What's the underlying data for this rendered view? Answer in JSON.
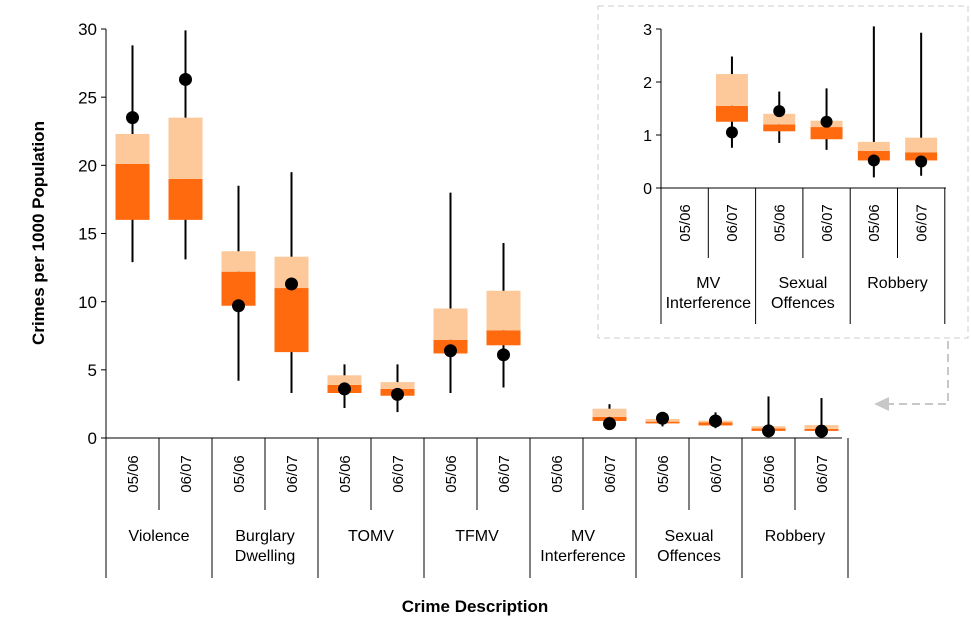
{
  "chart_data": [
    {
      "type": "box",
      "title": "",
      "xlabel": "Crime Description",
      "ylabel": "Crimes per 1000 Population",
      "ylim": [
        0,
        30
      ],
      "yticks": [
        0,
        5,
        10,
        15,
        20,
        25,
        30
      ],
      "grid": false,
      "colors": {
        "lower_box": "#ff6a0e",
        "upper_box": "#fdc99b",
        "whisker": "#000000",
        "marker": "#000000"
      },
      "categories": [
        {
          "label": "Violence",
          "periods": [
            {
              "period": "05/06",
              "min": 12.9,
              "q1": 16.0,
              "median": 20.1,
              "q3": 22.3,
              "max": 28.8,
              "value": 23.5
            },
            {
              "period": "06/07",
              "min": 13.1,
              "q1": 16.0,
              "median": 19.0,
              "q3": 23.5,
              "max": 29.9,
              "value": 26.3
            }
          ]
        },
        {
          "label": "Burglary Dwelling",
          "periods": [
            {
              "period": "05/06",
              "min": 4.2,
              "q1": 9.7,
              "median": 12.2,
              "q3": 13.7,
              "max": 18.5,
              "value": 9.7
            },
            {
              "period": "06/07",
              "min": 3.3,
              "q1": 6.3,
              "median": 11.0,
              "q3": 13.3,
              "max": 19.5,
              "value": 11.3
            }
          ]
        },
        {
          "label": "TOMV",
          "periods": [
            {
              "period": "05/06",
              "min": 2.2,
              "q1": 3.3,
              "median": 3.9,
              "q3": 4.6,
              "max": 5.4,
              "value": 3.6
            },
            {
              "period": "06/07",
              "min": 1.9,
              "q1": 3.1,
              "median": 3.6,
              "q3": 4.1,
              "max": 5.4,
              "value": 3.2
            }
          ]
        },
        {
          "label": "TFMV",
          "periods": [
            {
              "period": "05/06",
              "min": 3.3,
              "q1": 6.2,
              "median": 7.2,
              "q3": 9.5,
              "max": 18.0,
              "value": 6.4
            },
            {
              "period": "06/07",
              "min": 3.7,
              "q1": 6.8,
              "median": 7.9,
              "q3": 10.8,
              "max": 14.3,
              "value": 6.1
            }
          ]
        },
        {
          "label": "MV Interference",
          "periods": [
            {
              "period": "05/06",
              "min": null,
              "q1": null,
              "median": null,
              "q3": null,
              "max": null,
              "value": null
            },
            {
              "period": "06/07",
              "min": 0.76,
              "q1": 1.25,
              "median": 1.55,
              "q3": 2.15,
              "max": 2.48,
              "value": 1.05
            }
          ]
        },
        {
          "label": "Sexual Offences",
          "periods": [
            {
              "period": "05/06",
              "min": 0.85,
              "q1": 1.07,
              "median": 1.2,
              "q3": 1.4,
              "max": 1.82,
              "value": 1.45
            },
            {
              "period": "06/07",
              "min": 0.72,
              "q1": 0.92,
              "median": 1.15,
              "q3": 1.27,
              "max": 1.88,
              "value": 1.25
            }
          ]
        },
        {
          "label": "Robbery",
          "periods": [
            {
              "period": "05/06",
              "min": 0.2,
              "q1": 0.52,
              "median": 0.7,
              "q3": 0.87,
              "max": 3.05,
              "value": 0.52
            },
            {
              "period": "06/07",
              "min": 0.23,
              "q1": 0.52,
              "median": 0.67,
              "q3": 0.95,
              "max": 2.93,
              "value": 0.5
            }
          ]
        }
      ]
    },
    {
      "type": "box",
      "title": "",
      "xlabel": "",
      "ylabel": "",
      "ylim": [
        0,
        3
      ],
      "yticks": [
        0,
        1,
        2,
        3
      ],
      "categories_shown": [
        "MV Interference",
        "Sexual Offences",
        "Robbery"
      ],
      "note": "inset"
    }
  ]
}
